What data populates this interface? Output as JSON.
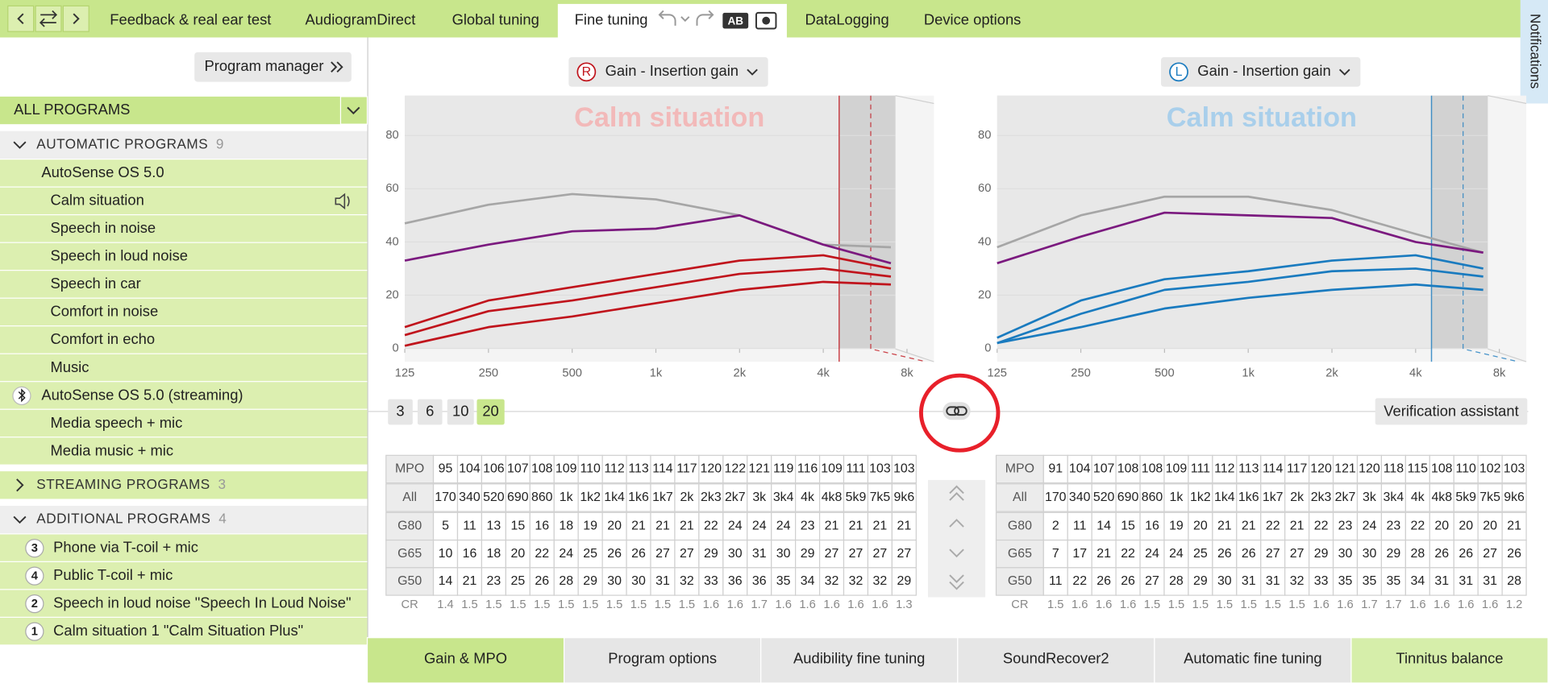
{
  "top_tabs": [
    {
      "label": "Feedback & real ear test",
      "active": false
    },
    {
      "label": "AudiogramDirect",
      "active": false
    },
    {
      "label": "Global tuning",
      "active": false
    },
    {
      "label": "Fine tuning",
      "active": true
    },
    {
      "label": "DataLogging",
      "active": false
    },
    {
      "label": "Device options",
      "active": false
    }
  ],
  "compare_icon_label": "AB",
  "notifications": "Notifications",
  "sidebar": {
    "program_manager": "Program manager",
    "all_programs": "ALL PROGRAMS",
    "groups": [
      {
        "name": "AUTOMATIC PROGRAMS",
        "count": 9,
        "expanded": true,
        "sections": [
          {
            "name": "AutoSense OS 5.0",
            "bluetooth": false,
            "programs": [
              "Calm situation",
              "Speech in noise",
              "Speech in loud noise",
              "Speech in car",
              "Comfort in noise",
              "Comfort in echo",
              "Music"
            ]
          },
          {
            "name": "AutoSense OS 5.0 (streaming)",
            "bluetooth": true,
            "programs": [
              "Media speech + mic",
              "Media music + mic"
            ]
          }
        ]
      },
      {
        "name": "STREAMING PROGRAMS",
        "count": 3,
        "expanded": false
      },
      {
        "name": "ADDITIONAL PROGRAMS",
        "count": 4,
        "expanded": true,
        "programs": [
          {
            "number": 3,
            "label": "Phone via T-coil + mic"
          },
          {
            "number": 4,
            "label": "Public T-coil + mic"
          },
          {
            "number": 2,
            "label": "Speech in loud noise \"Speech In Loud Noise\""
          },
          {
            "number": 1,
            "label": "Calm situation 1 \"Calm Situation Plus\""
          }
        ]
      }
    ]
  },
  "panels": [
    {
      "side": "R",
      "dropdown": "Gain - Insertion gain",
      "accent": "#c0141c",
      "chart_data": {
        "type": "line",
        "title": "Calm situation",
        "title_color": "#f2b9b9",
        "x": [
          125,
          250,
          500,
          1000,
          2000,
          4000,
          7000
        ],
        "xlim": [
          125,
          10000
        ],
        "log_x": true,
        "xticks": [
          125,
          250,
          500,
          {
            "value": 1000,
            "label": "1k"
          },
          {
            "value": 2000,
            "label": "2k"
          },
          {
            "value": 4000,
            "label": "4k"
          },
          {
            "value": 8000,
            "label": "8k"
          }
        ],
        "ylim": [
          -5,
          95
        ],
        "yticks": [
          0,
          20,
          40,
          60,
          80
        ],
        "series": [
          {
            "color": "#a6a6a6",
            "values": [
              47,
              54,
              58,
              56,
              50,
              39,
              38
            ]
          },
          {
            "color": "#7b1a7f",
            "values": [
              33,
              39,
              44,
              45,
              50,
              39,
              32
            ]
          },
          {
            "color": "#c0141c",
            "values": [
              8,
              18,
              23,
              28,
              33,
              35,
              30
            ]
          },
          {
            "color": "#c0141c",
            "values": [
              5,
              14,
              18,
              23,
              28,
              30,
              27
            ]
          },
          {
            "color": "#c0141c",
            "values": [
              1,
              8,
              12,
              17,
              22,
              25,
              24
            ]
          }
        ]
      },
      "table": {
        "row_labels": [
          "MPO",
          "All",
          "G80",
          "G65",
          "G50",
          "CR"
        ],
        "rows": [
          [
            95,
            104,
            106,
            107,
            108,
            109,
            110,
            112,
            113,
            114,
            117,
            120,
            122,
            121,
            119,
            116,
            109,
            111,
            103,
            103
          ],
          [
            170,
            340,
            520,
            690,
            860,
            "1k",
            "1k2",
            "1k4",
            "1k6",
            "1k7",
            "2k",
            "2k3",
            "2k7",
            "3k",
            "3k4",
            "4k",
            "4k8",
            "5k9",
            "7k5",
            "9k6"
          ],
          [
            5,
            11,
            13,
            15,
            16,
            18,
            19,
            20,
            21,
            21,
            21,
            22,
            24,
            24,
            24,
            23,
            21,
            21,
            21,
            21
          ],
          [
            10,
            16,
            18,
            20,
            22,
            24,
            25,
            26,
            26,
            27,
            27,
            29,
            30,
            31,
            30,
            29,
            27,
            27,
            27,
            27
          ],
          [
            14,
            21,
            23,
            25,
            26,
            28,
            29,
            30,
            30,
            31,
            32,
            33,
            36,
            36,
            35,
            34,
            32,
            32,
            32,
            29
          ],
          [
            1.4,
            1.5,
            1.5,
            1.5,
            1.5,
            1.5,
            1.5,
            1.5,
            1.5,
            1.5,
            1.5,
            1.6,
            1.6,
            1.7,
            1.6,
            1.6,
            1.6,
            1.6,
            1.6,
            1.3
          ]
        ]
      }
    },
    {
      "side": "L",
      "dropdown": "Gain - Insertion gain",
      "accent": "#1a7bbf",
      "chart_data": {
        "type": "line",
        "title": "Calm situation",
        "title_color": "#a9cfeb",
        "x": [
          125,
          250,
          500,
          1000,
          2000,
          4000,
          7000
        ],
        "xlim": [
          125,
          10000
        ],
        "log_x": true,
        "xticks": [
          125,
          250,
          500,
          {
            "value": 1000,
            "label": "1k"
          },
          {
            "value": 2000,
            "label": "2k"
          },
          {
            "value": 4000,
            "label": "4k"
          },
          {
            "value": 8000,
            "label": "8k"
          }
        ],
        "ylim": [
          -5,
          95
        ],
        "yticks": [
          0,
          20,
          40,
          60,
          80
        ],
        "series": [
          {
            "color": "#a6a6a6",
            "values": [
              38,
              50,
              57,
              57,
              52,
              43,
              36
            ]
          },
          {
            "color": "#7b1a7f",
            "values": [
              32,
              42,
              51,
              50,
              49,
              40,
              36
            ]
          },
          {
            "color": "#1a7bbf",
            "values": [
              4,
              18,
              26,
              29,
              33,
              35,
              30
            ]
          },
          {
            "color": "#1a7bbf",
            "values": [
              2,
              13,
              22,
              25,
              29,
              30,
              27
            ]
          },
          {
            "color": "#1a7bbf",
            "values": [
              2,
              8,
              15,
              19,
              22,
              24,
              22
            ]
          }
        ]
      },
      "table": {
        "row_labels": [
          "MPO",
          "All",
          "G80",
          "G65",
          "G50",
          "CR"
        ],
        "rows": [
          [
            91,
            104,
            107,
            108,
            108,
            109,
            111,
            112,
            113,
            114,
            117,
            120,
            121,
            120,
            118,
            115,
            108,
            110,
            102,
            103
          ],
          [
            170,
            340,
            520,
            690,
            860,
            "1k",
            "1k2",
            "1k4",
            "1k6",
            "1k7",
            "2k",
            "2k3",
            "2k7",
            "3k",
            "3k4",
            "4k",
            "4k8",
            "5k9",
            "7k5",
            "9k6"
          ],
          [
            2,
            11,
            14,
            15,
            16,
            19,
            20,
            21,
            21,
            22,
            21,
            22,
            23,
            24,
            23,
            22,
            20,
            20,
            20,
            21
          ],
          [
            7,
            17,
            21,
            22,
            24,
            24,
            25,
            26,
            26,
            27,
            27,
            29,
            30,
            30,
            29,
            28,
            26,
            26,
            27,
            26
          ],
          [
            11,
            22,
            26,
            26,
            27,
            28,
            29,
            30,
            31,
            31,
            32,
            33,
            35,
            35,
            35,
            34,
            31,
            31,
            31,
            28
          ],
          [
            1.5,
            1.6,
            1.6,
            1.6,
            1.5,
            1.5,
            1.5,
            1.5,
            1.5,
            1.5,
            1.5,
            1.6,
            1.6,
            1.7,
            1.7,
            1.6,
            1.6,
            1.6,
            1.6,
            1.2
          ]
        ]
      }
    }
  ],
  "levels": [
    3,
    6,
    10,
    20
  ],
  "selected_level": 20,
  "verification_assistant": "Verification assistant",
  "bottom_tabs": [
    {
      "label": "Gain & MPO",
      "active": true
    },
    {
      "label": "Program options",
      "active": false
    },
    {
      "label": "Audibility fine tuning",
      "active": false
    },
    {
      "label": "SoundRecover2",
      "active": false
    },
    {
      "label": "Automatic fine tuning",
      "active": false
    },
    {
      "label": "Tinnitus balance",
      "active": true
    }
  ]
}
